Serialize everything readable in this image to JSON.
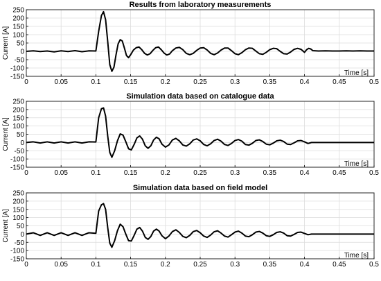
{
  "chart_data": [
    {
      "type": "line",
      "title": "Results from laboratory measurements",
      "xlabel": "Time [s]",
      "ylabel": "Current [A]",
      "xlim": [
        0,
        0.5
      ],
      "ylim": [
        -150,
        250
      ],
      "xticks": [
        "0",
        "0.05",
        "0.1",
        "0.15",
        "0.2",
        "0.25",
        "0.3",
        "0.35",
        "0.4",
        "0.45",
        "0.5"
      ],
      "yticks": [
        "-150",
        "-100",
        "-50",
        "0",
        "50",
        "100",
        "150",
        "200",
        "250"
      ],
      "grid": true,
      "series": [
        {
          "x": [
            0,
            0.01,
            0.02,
            0.03,
            0.04,
            0.05,
            0.06,
            0.07,
            0.08,
            0.09,
            0.1,
            0.104,
            0.108,
            0.111,
            0.114,
            0.117,
            0.12,
            0.123,
            0.126,
            0.129,
            0.132,
            0.135,
            0.138,
            0.141,
            0.144,
            0.147,
            0.15,
            0.154,
            0.158,
            0.162,
            0.166,
            0.17,
            0.174,
            0.178,
            0.182,
            0.186,
            0.19,
            0.194,
            0.198,
            0.202,
            0.206,
            0.21,
            0.215,
            0.22,
            0.225,
            0.23,
            0.235,
            0.24,
            0.245,
            0.25,
            0.255,
            0.26,
            0.265,
            0.27,
            0.275,
            0.28,
            0.285,
            0.29,
            0.295,
            0.3,
            0.305,
            0.31,
            0.315,
            0.32,
            0.325,
            0.33,
            0.335,
            0.34,
            0.345,
            0.35,
            0.355,
            0.36,
            0.365,
            0.37,
            0.375,
            0.38,
            0.385,
            0.39,
            0.395,
            0.4,
            0.403,
            0.406,
            0.409,
            0.412,
            0.42,
            0.43,
            0.44,
            0.45,
            0.46,
            0.47,
            0.48,
            0.49,
            0.5
          ],
          "y": [
            0,
            3,
            -1,
            2,
            -3,
            3,
            -1,
            4,
            -2,
            3,
            2,
            120,
            215,
            238,
            190,
            60,
            -80,
            -120,
            -95,
            -20,
            45,
            70,
            62,
            20,
            -25,
            -38,
            -20,
            8,
            22,
            26,
            10,
            -12,
            -22,
            -14,
            6,
            22,
            26,
            10,
            -10,
            -22,
            -16,
            4,
            20,
            24,
            10,
            -12,
            -20,
            -12,
            6,
            20,
            22,
            8,
            -12,
            -20,
            -10,
            8,
            20,
            20,
            4,
            -14,
            -20,
            -8,
            10,
            20,
            18,
            2,
            -14,
            -18,
            -6,
            10,
            18,
            16,
            0,
            -14,
            -16,
            -4,
            12,
            18,
            12,
            -6,
            10,
            18,
            14,
            4,
            2,
            3,
            2,
            2,
            3,
            2,
            3,
            2,
            2
          ]
        }
      ]
    },
    {
      "type": "line",
      "title": "Simulation data based on catalogue data",
      "xlabel": "Time [s]",
      "ylabel": "Current [A]",
      "xlim": [
        0,
        0.5
      ],
      "ylim": [
        -150,
        250
      ],
      "xticks": [
        "0",
        "0.05",
        "0.1",
        "0.15",
        "0.2",
        "0.25",
        "0.3",
        "0.35",
        "0.4",
        "0.45",
        "0.5"
      ],
      "yticks": [
        "-150",
        "-100",
        "-50",
        "0",
        "50",
        "100",
        "150",
        "200",
        "250"
      ],
      "grid": true,
      "series": [
        {
          "x": [
            0,
            0.01,
            0.02,
            0.03,
            0.04,
            0.05,
            0.06,
            0.07,
            0.08,
            0.09,
            0.1,
            0.104,
            0.108,
            0.111,
            0.114,
            0.117,
            0.12,
            0.123,
            0.127,
            0.131,
            0.135,
            0.139,
            0.143,
            0.147,
            0.151,
            0.155,
            0.159,
            0.163,
            0.167,
            0.171,
            0.175,
            0.179,
            0.183,
            0.187,
            0.191,
            0.195,
            0.2,
            0.205,
            0.21,
            0.215,
            0.22,
            0.225,
            0.23,
            0.235,
            0.24,
            0.245,
            0.25,
            0.255,
            0.26,
            0.265,
            0.27,
            0.275,
            0.28,
            0.285,
            0.29,
            0.295,
            0.3,
            0.305,
            0.31,
            0.315,
            0.32,
            0.325,
            0.33,
            0.335,
            0.34,
            0.345,
            0.35,
            0.355,
            0.36,
            0.365,
            0.37,
            0.375,
            0.38,
            0.385,
            0.39,
            0.395,
            0.4,
            0.405,
            0.41,
            0.415,
            0.42,
            0.43,
            0.44,
            0.45,
            0.46,
            0.47,
            0.48,
            0.49,
            0.5
          ],
          "y": [
            0,
            4,
            -3,
            4,
            -3,
            4,
            -3,
            4,
            -3,
            4,
            3,
            150,
            205,
            210,
            160,
            40,
            -60,
            -90,
            -50,
            10,
            52,
            45,
            5,
            -38,
            -45,
            -12,
            28,
            40,
            20,
            -20,
            -35,
            -20,
            15,
            32,
            22,
            -10,
            -28,
            -15,
            15,
            25,
            10,
            -15,
            -22,
            -8,
            15,
            22,
            10,
            -12,
            -20,
            -8,
            12,
            20,
            8,
            -12,
            -18,
            -6,
            12,
            18,
            8,
            -12,
            -16,
            -5,
            12,
            16,
            6,
            -10,
            -14,
            -4,
            10,
            14,
            6,
            -10,
            -12,
            -2,
            10,
            12,
            4,
            -6,
            0,
            0,
            0,
            0,
            0,
            0,
            0,
            0,
            0,
            0,
            0
          ]
        }
      ]
    },
    {
      "type": "line",
      "title": "Simulation data based on field model",
      "xlabel": "Time [s]",
      "ylabel": "Current [A]",
      "xlim": [
        0,
        0.5
      ],
      "ylim": [
        -150,
        250
      ],
      "xticks": [
        "0",
        "0.05",
        "0.1",
        "0.15",
        "0.2",
        "0.25",
        "0.3",
        "0.35",
        "0.4",
        "0.45",
        "0.5"
      ],
      "yticks": [
        "-150",
        "-100",
        "-50",
        "0",
        "50",
        "100",
        "150",
        "200",
        "250"
      ],
      "grid": true,
      "series": [
        {
          "x": [
            0,
            0.01,
            0.02,
            0.03,
            0.04,
            0.05,
            0.06,
            0.07,
            0.08,
            0.09,
            0.1,
            0.104,
            0.108,
            0.111,
            0.114,
            0.117,
            0.12,
            0.123,
            0.127,
            0.131,
            0.135,
            0.139,
            0.143,
            0.147,
            0.151,
            0.155,
            0.159,
            0.163,
            0.167,
            0.171,
            0.175,
            0.179,
            0.183,
            0.187,
            0.191,
            0.195,
            0.2,
            0.205,
            0.21,
            0.215,
            0.22,
            0.225,
            0.23,
            0.235,
            0.24,
            0.245,
            0.25,
            0.255,
            0.26,
            0.265,
            0.27,
            0.275,
            0.28,
            0.285,
            0.29,
            0.295,
            0.3,
            0.305,
            0.31,
            0.315,
            0.32,
            0.325,
            0.33,
            0.335,
            0.34,
            0.345,
            0.35,
            0.355,
            0.36,
            0.365,
            0.37,
            0.375,
            0.38,
            0.385,
            0.39,
            0.395,
            0.4,
            0.405,
            0.41,
            0.415,
            0.42,
            0.43,
            0.44,
            0.45,
            0.46,
            0.47,
            0.48,
            0.49,
            0.5
          ],
          "y": [
            0,
            8,
            -8,
            8,
            -8,
            8,
            -8,
            8,
            -8,
            8,
            5,
            140,
            178,
            185,
            150,
            40,
            -55,
            -80,
            -40,
            20,
            60,
            45,
            0,
            -40,
            -42,
            -8,
            30,
            40,
            18,
            -20,
            -32,
            -15,
            18,
            30,
            18,
            -10,
            -28,
            -12,
            15,
            26,
            10,
            -14,
            -22,
            -8,
            15,
            22,
            8,
            -12,
            -20,
            -6,
            14,
            20,
            6,
            -12,
            -18,
            -4,
            12,
            18,
            6,
            -12,
            -16,
            -4,
            12,
            16,
            6,
            -10,
            -14,
            -4,
            10,
            14,
            6,
            -10,
            -12,
            -2,
            10,
            12,
            4,
            -4,
            0,
            0,
            0,
            0,
            0,
            0,
            0,
            0,
            0,
            0,
            0
          ]
        }
      ]
    }
  ]
}
